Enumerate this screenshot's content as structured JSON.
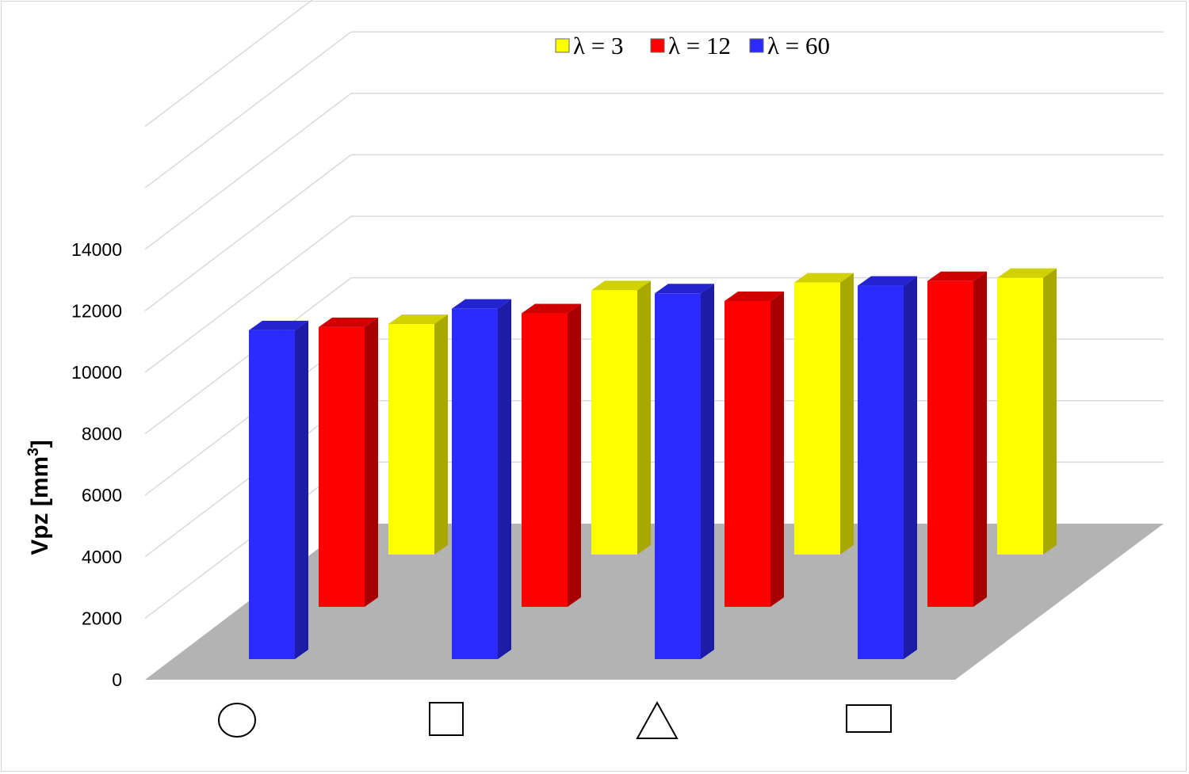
{
  "chart_data": {
    "type": "bar",
    "projection": "3d",
    "title": "",
    "xlabel": "",
    "ylabel": "Vpz [mm",
    "ylabel_sup": "3",
    "ylabel_close": "]",
    "ylim": [
      0,
      14000
    ],
    "yticks": [
      0,
      2000,
      4000,
      6000,
      8000,
      10000,
      12000,
      14000
    ],
    "grid": true,
    "legend_position": "top-center",
    "categories": [
      {
        "icon": "circle-icon"
      },
      {
        "icon": "square-icon"
      },
      {
        "icon": "triangle-icon"
      },
      {
        "icon": "rectangle-icon"
      }
    ],
    "series": [
      {
        "name": "λ = 3",
        "color": "#ffff00",
        "values": [
          7500,
          8600,
          8850,
          9000
        ]
      },
      {
        "name": "λ = 12",
        "color": "#ff0000",
        "values": [
          9100,
          9550,
          9950,
          10600
        ]
      },
      {
        "name": "λ = 60",
        "color": "#2b2bff",
        "values": [
          10700,
          11400,
          11900,
          12150
        ]
      }
    ],
    "floor_color": "#b3b3b3"
  }
}
